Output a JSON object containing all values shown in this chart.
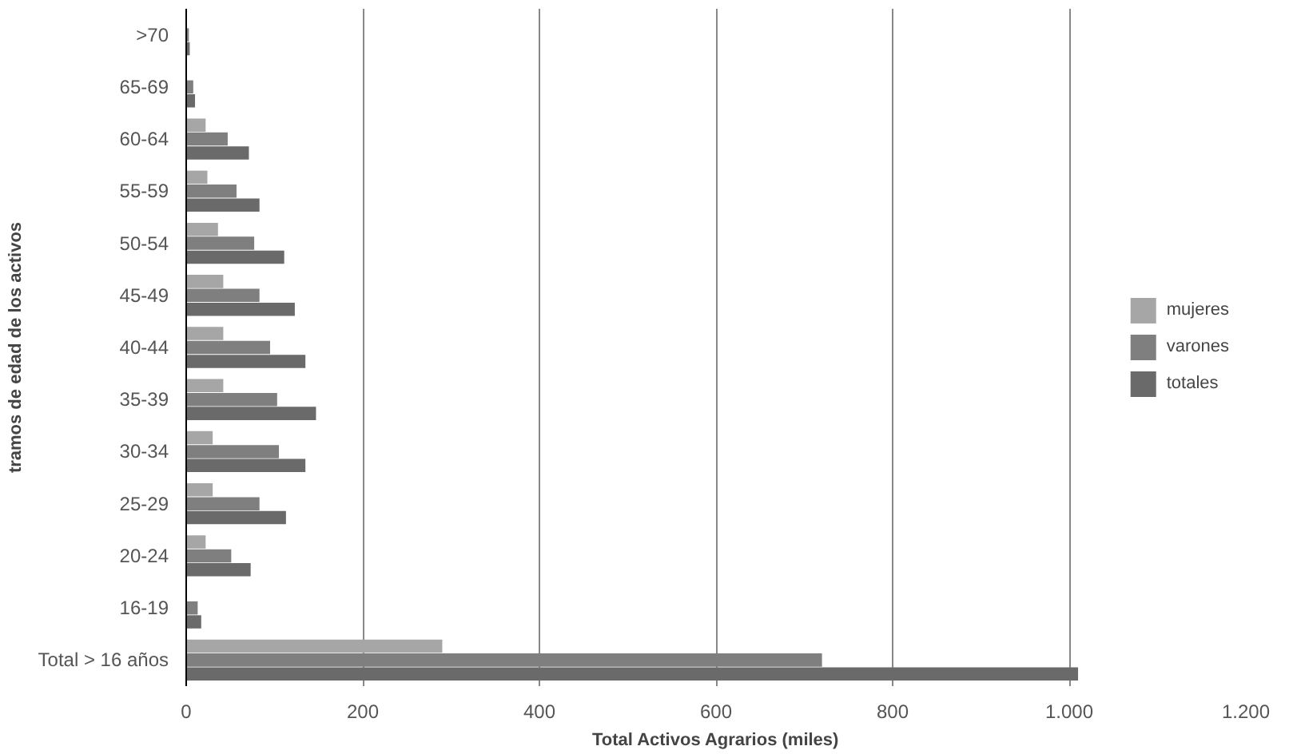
{
  "chart_data": {
    "type": "bar",
    "orientation": "horizontal",
    "xlabel": "Total Activos Agrarios (miles)",
    "ylabel": "tramos de edad de los activos",
    "categories": [
      ">70",
      "65-69",
      "60-64",
      "55-59",
      "50-54",
      "45-49",
      "40-44",
      "35-39",
      "30-34",
      "25-29",
      "20-24",
      "16-19",
      "Total > 16 años"
    ],
    "series": [
      {
        "name": "mujeres",
        "color": "#a6a6a6",
        "values": [
          null,
          null,
          22,
          24,
          36,
          42,
          42,
          42,
          30,
          30,
          22,
          null,
          290
        ]
      },
      {
        "name": "varones",
        "color": "#7f7f7f",
        "values": [
          3,
          8,
          47,
          57,
          77,
          83,
          95,
          103,
          105,
          83,
          51,
          13,
          720
        ]
      },
      {
        "name": "totales",
        "color": "#6a6a6a",
        "values": [
          4,
          10,
          71,
          83,
          111,
          123,
          135,
          147,
          135,
          113,
          73,
          17,
          1010
        ]
      }
    ],
    "xlim": [
      0,
      1200
    ],
    "xticks": [
      0,
      200,
      400,
      600,
      800,
      {
        "value": 1000,
        "label": "1.000"
      },
      {
        "value": 1200,
        "label": "1.200"
      }
    ],
    "grid": "x",
    "legend": "right"
  }
}
